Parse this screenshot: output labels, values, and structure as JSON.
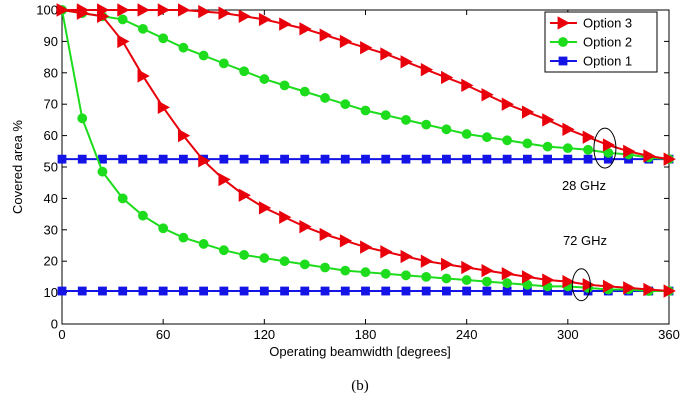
{
  "chart_data": {
    "type": "line",
    "xlabel": "Operating beamwidth [degrees]",
    "ylabel": "Covered area %",
    "xlim": [
      0,
      360
    ],
    "ylim": [
      0,
      100
    ],
    "xticks": [
      0,
      60,
      120,
      180,
      240,
      300,
      360
    ],
    "yticks": [
      0,
      10,
      20,
      30,
      40,
      50,
      60,
      70,
      80,
      90,
      100
    ],
    "grid": false,
    "legend_position": "top-right",
    "legend": [
      "Option 3",
      "Option 2",
      "Option 1"
    ],
    "caption": "(b)",
    "annotations": [
      {
        "text": "28 GHz"
      },
      {
        "text": "72 GHz"
      }
    ],
    "x": [
      0,
      12,
      24,
      36,
      48,
      60,
      72,
      84,
      96,
      108,
      120,
      132,
      144,
      156,
      168,
      180,
      192,
      204,
      216,
      228,
      240,
      252,
      264,
      276,
      288,
      300,
      312,
      324,
      336,
      348,
      360
    ],
    "series": [
      {
        "name": "Option 3",
        "group": "28 GHz",
        "color": "#e8000b",
        "marker": "triangle-right",
        "values": [
          100,
          100,
          100,
          100,
          100,
          100,
          100,
          99.5,
          99,
          98,
          97,
          95.5,
          94,
          92,
          90,
          88,
          86,
          83.5,
          81,
          78.5,
          76,
          73,
          70,
          67.5,
          65,
          62,
          59.5,
          57,
          55,
          53.5,
          52.5
        ]
      },
      {
        "name": "Option 2",
        "group": "28 GHz",
        "color": "#1cdc1c",
        "marker": "circle",
        "values": [
          100,
          99,
          98,
          97,
          94,
          91,
          88,
          85.5,
          83,
          80.5,
          78,
          76,
          74,
          72,
          70,
          68,
          66.5,
          65,
          63.5,
          62,
          60.5,
          59.5,
          58.5,
          57.5,
          56.5,
          56,
          55.5,
          54.5,
          54,
          53,
          52.5
        ]
      },
      {
        "name": "Option 1",
        "group": "28 GHz",
        "color": "#1414e6",
        "marker": "square",
        "values": [
          52.5,
          52.5,
          52.5,
          52.5,
          52.5,
          52.5,
          52.5,
          52.5,
          52.5,
          52.5,
          52.5,
          52.5,
          52.5,
          52.5,
          52.5,
          52.5,
          52.5,
          52.5,
          52.5,
          52.5,
          52.5,
          52.5,
          52.5,
          52.5,
          52.5,
          52.5,
          52.5,
          52.5,
          52.5,
          52.5,
          52.5
        ]
      },
      {
        "name": "Option 3",
        "group": "72 GHz",
        "color": "#e8000b",
        "marker": "triangle-right",
        "values": [
          100,
          99,
          98,
          90,
          79,
          69,
          60,
          52,
          46,
          41,
          37,
          34,
          31,
          28.5,
          26.5,
          24.5,
          23,
          21.5,
          20,
          19,
          18,
          17,
          16,
          15,
          14,
          13.5,
          12.5,
          12,
          11.5,
          11,
          10.5
        ]
      },
      {
        "name": "Option 2",
        "group": "72 GHz",
        "color": "#1cdc1c",
        "marker": "circle",
        "values": [
          100,
          65.5,
          48.5,
          40,
          34.5,
          30.5,
          27.5,
          25.5,
          23.5,
          22,
          21,
          20,
          19,
          18,
          17,
          16.5,
          16,
          15.5,
          15,
          14.5,
          14,
          13.5,
          13,
          12.5,
          12,
          12,
          11.5,
          11,
          11,
          10.5,
          10.5
        ]
      },
      {
        "name": "Option 1",
        "group": "72 GHz",
        "color": "#1414e6",
        "marker": "square",
        "values": [
          10.5,
          10.5,
          10.5,
          10.5,
          10.5,
          10.5,
          10.5,
          10.5,
          10.5,
          10.5,
          10.5,
          10.5,
          10.5,
          10.5,
          10.5,
          10.5,
          10.5,
          10.5,
          10.5,
          10.5,
          10.5,
          10.5,
          10.5,
          10.5,
          10.5,
          10.5,
          10.5,
          10.5,
          10.5,
          10.5,
          10.5
        ]
      }
    ]
  }
}
